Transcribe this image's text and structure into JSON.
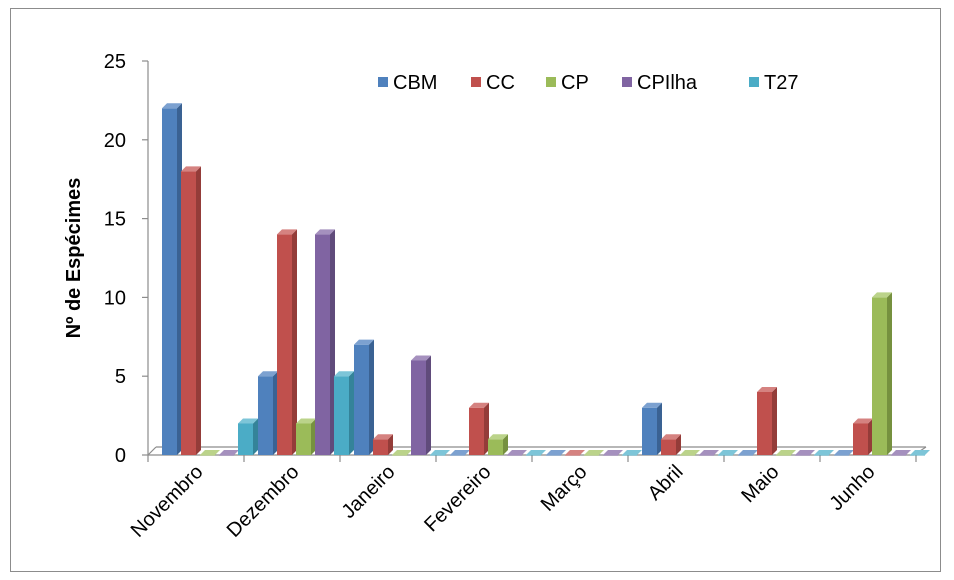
{
  "chart_data": {
    "type": "bar",
    "title": "",
    "xlabel": "",
    "ylabel": "Nº de Espécimes",
    "ylim": [
      0,
      25
    ],
    "yticks": [
      0,
      5,
      10,
      15,
      20,
      25
    ],
    "grid": false,
    "legend_position": "top-right",
    "categories": [
      "Novembro",
      "Dezembro",
      "Janeiro",
      "Fevereiro",
      "Março",
      "Abril",
      "Maio",
      "Junho"
    ],
    "series": [
      {
        "name": "CBM",
        "color": "#4F81BD",
        "side": "#3A6293",
        "top": "#7CA1D0",
        "values": [
          22,
          5,
          7,
          0,
          0,
          3,
          0,
          0
        ]
      },
      {
        "name": "CC",
        "color": "#C0504D",
        "side": "#943C39",
        "top": "#D58280",
        "values": [
          18,
          14,
          1,
          3,
          0,
          1,
          4,
          2
        ]
      },
      {
        "name": "CP",
        "color": "#9BBB59",
        "side": "#76913F",
        "top": "#BBD38A",
        "values": [
          0,
          2,
          0,
          1,
          0,
          0,
          0,
          10
        ]
      },
      {
        "name": "CPIlha",
        "color": "#8064A2",
        "side": "#604B7B",
        "top": "#A590BE",
        "values": [
          0,
          14,
          6,
          0,
          0,
          0,
          0,
          0
        ]
      },
      {
        "name": "T27",
        "color": "#4BACC6",
        "side": "#348399",
        "top": "#7DC5D8",
        "values": [
          2,
          5,
          0,
          0,
          0,
          0,
          0,
          0
        ]
      }
    ]
  }
}
